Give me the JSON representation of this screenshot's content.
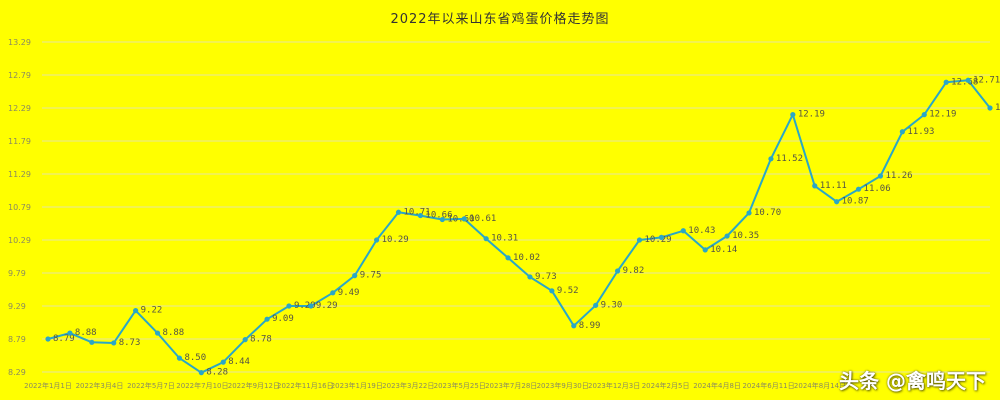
{
  "chart_data": {
    "type": "line",
    "title": "2022年以来山东省鸡蛋价格走势图",
    "xlabel": "",
    "ylabel": "",
    "ylim": [
      8.29,
      13.29
    ],
    "yticks": [
      "8.29",
      "8.79",
      "9.29",
      "9.79",
      "10.29",
      "10.79",
      "11.29",
      "11.79",
      "12.29",
      "12.79",
      "13.29"
    ],
    "xticks": [
      "2022年1月1日",
      "2022年3月4日",
      "2022年5月7日",
      "2022年7月10日",
      "2022年9月12日",
      "2022年11月16日",
      "2023年1月19日",
      "2023年3月22日",
      "2023年5月25日",
      "2023年7月28日",
      "2023年9月30日",
      "2023年12月3日",
      "2024年2月5日",
      "2024年4月8日",
      "2024年6月11日",
      "2024年8月14日"
    ],
    "grid": true,
    "series": [
      {
        "color": "#2aa7c7",
        "values": [
          8.79,
          8.88,
          8.74,
          8.73,
          9.22,
          8.88,
          8.5,
          8.28,
          8.44,
          8.78,
          9.09,
          9.29,
          9.29,
          9.49,
          9.75,
          10.29,
          10.71,
          10.66,
          10.6,
          10.61,
          10.31,
          10.02,
          9.73,
          9.52,
          8.99,
          9.3,
          9.82,
          10.29,
          10.33,
          10.43,
          10.14,
          10.35,
          10.7,
          11.52,
          12.19,
          11.11,
          10.87,
          11.06,
          11.26,
          11.93,
          12.19,
          12.68,
          12.71,
          12.29
        ],
        "labels": [
          "8.79",
          "8.88",
          "",
          "8.73",
          "9.22",
          "8.88",
          "8.50",
          "8.28",
          "8.44",
          "8.78",
          "9.09",
          "9.29",
          "9.29",
          "9.49",
          "9.75",
          "10.29",
          "10.71",
          "10.66",
          "10.60",
          "10.61",
          "10.31",
          "10.02",
          "9.73",
          "9.52",
          "8.99",
          "9.30",
          "9.82",
          "10.29",
          "",
          "10.43",
          "10.14",
          "10.35",
          "10.70",
          "11.52",
          "12.19",
          "11.11",
          "10.87",
          "11.06",
          "11.26",
          "11.93",
          "12.19",
          "12.68",
          "12.71",
          "12.29"
        ]
      }
    ]
  },
  "watermark": "头条 @禽鸣天下"
}
